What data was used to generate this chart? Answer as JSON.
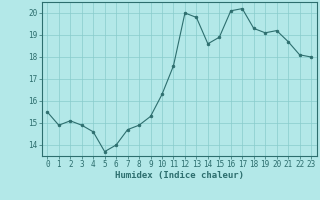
{
  "title": "",
  "xlabel": "Humidex (Indice chaleur)",
  "ylabel": "",
  "background_color": "#b3e8e8",
  "line_color": "#2d6e6e",
  "marker_color": "#2d6e6e",
  "grid_color": "#88cccc",
  "x": [
    0,
    1,
    2,
    3,
    4,
    5,
    6,
    7,
    8,
    9,
    10,
    11,
    12,
    13,
    14,
    15,
    16,
    17,
    18,
    19,
    20,
    21,
    22,
    23
  ],
  "y": [
    15.5,
    14.9,
    15.1,
    14.9,
    14.6,
    13.7,
    14.0,
    14.7,
    14.9,
    15.3,
    16.3,
    17.6,
    20.0,
    19.8,
    18.6,
    18.9,
    20.1,
    20.2,
    19.3,
    19.1,
    19.2,
    18.7,
    18.1,
    18.0
  ],
  "xlim": [
    -0.5,
    23.5
  ],
  "ylim": [
    13.5,
    20.5
  ],
  "yticks": [
    14,
    15,
    16,
    17,
    18,
    19,
    20
  ],
  "xticks": [
    0,
    1,
    2,
    3,
    4,
    5,
    6,
    7,
    8,
    9,
    10,
    11,
    12,
    13,
    14,
    15,
    16,
    17,
    18,
    19,
    20,
    21,
    22,
    23
  ],
  "xtick_labels": [
    "0",
    "1",
    "2",
    "3",
    "4",
    "5",
    "6",
    "7",
    "8",
    "9",
    "10",
    "11",
    "12",
    "13",
    "14",
    "15",
    "16",
    "17",
    "18",
    "19",
    "20",
    "21",
    "22",
    "23"
  ],
  "figsize": [
    3.2,
    2.0
  ],
  "dpi": 100
}
